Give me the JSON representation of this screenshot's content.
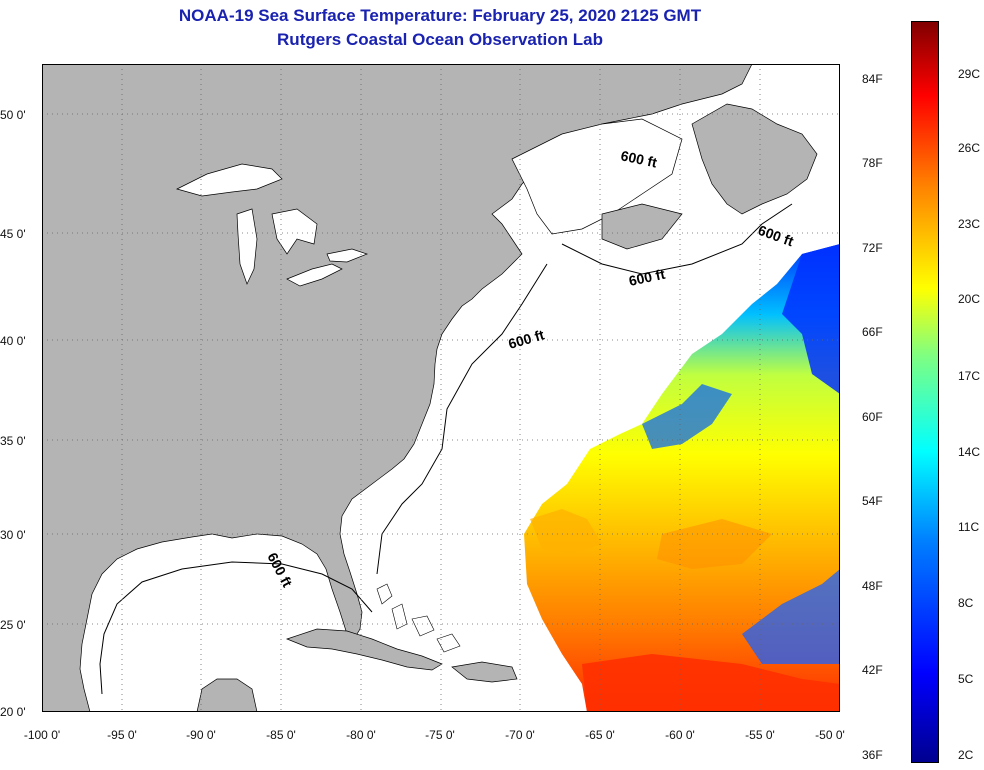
{
  "title": {
    "line1": "NOAA-19 Sea Surface Temperature:  February 25, 2020 2125 GMT",
    "line2": "Rutgers Coastal Ocean Observation Lab"
  },
  "map": {
    "lon_range": [
      -100,
      -50
    ],
    "lat_range": [
      20,
      52.5
    ],
    "lat_ticks": [
      "50 0'",
      "45 0'",
      "40 0'",
      "35 0'",
      "30 0'",
      "25 0'",
      "20 0'"
    ],
    "lon_ticks": [
      "-100 0'",
      "-95 0'",
      "-90 0'",
      "-85 0'",
      "-80 0'",
      "-75 0'",
      "-70 0'",
      "-65 0'",
      "-60 0'",
      "-55 0'",
      "-50 0'"
    ],
    "contour_labels": [
      "600 ft",
      "600 ft",
      "600 ft",
      "600 ft",
      "600 ft"
    ],
    "colors": {
      "land": "#b4b4b4",
      "ocean_no_data": "#ffffff",
      "grid": "#666666"
    }
  },
  "colorbar": {
    "f_ticks": [
      "84F",
      "78F",
      "72F",
      "66F",
      "60F",
      "54F",
      "48F",
      "42F",
      "36F"
    ],
    "c_ticks": [
      "29C",
      "26C",
      "23C",
      "20C",
      "17C",
      "14C",
      "11C",
      "8C",
      "5C",
      "2C"
    ],
    "colors": [
      "#00008f",
      "#0000ff",
      "#0080ff",
      "#00ffff",
      "#80ff80",
      "#ffff00",
      "#ff8000",
      "#ff0000",
      "#800000"
    ]
  }
}
